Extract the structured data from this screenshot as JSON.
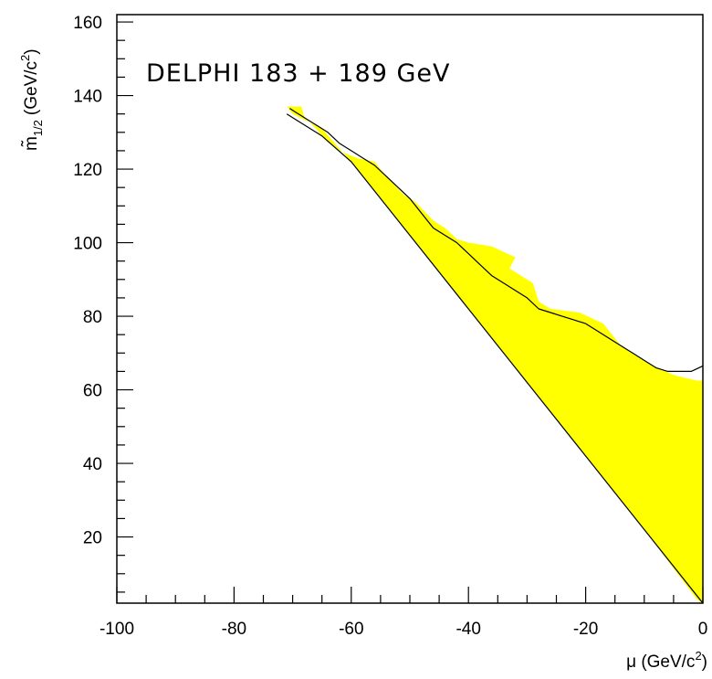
{
  "chart_data": {
    "type": "area",
    "annotation": "DELPHI 183 + 189 GeV",
    "xlabel": {
      "symbol": "μ",
      "unit_prefix": "(GeV/c",
      "unit_exp": "2",
      "unit_suffix": ")"
    },
    "ylabel": {
      "symbol": "m̃",
      "sub": "1/2",
      "unit_prefix": "(GeV/c",
      "unit_exp": "2",
      "unit_suffix": ")"
    },
    "xlim": [
      -100,
      0
    ],
    "ylim": [
      2,
      162
    ],
    "xticks": [
      "-100",
      "-80",
      "-60",
      "-40",
      "-20",
      "0"
    ],
    "yticks": [
      "20",
      "40",
      "60",
      "80",
      "100",
      "120",
      "140",
      "160"
    ],
    "colors": {
      "excluded_region": "#ffff00",
      "contour": "#000000",
      "frame": "#000000"
    },
    "series": [
      {
        "kind": "filled-region",
        "color": "#ffff00",
        "points": [
          [
            -71,
            137
          ],
          [
            -68.5,
            137
          ],
          [
            -68,
            134
          ],
          [
            -66,
            131
          ],
          [
            -64.5,
            128
          ],
          [
            -62,
            125
          ],
          [
            -59,
            123
          ],
          [
            -56,
            122
          ],
          [
            -54,
            118
          ],
          [
            -51,
            113
          ],
          [
            -49,
            111
          ],
          [
            -46,
            106
          ],
          [
            -44,
            104
          ],
          [
            -42,
            101
          ],
          [
            -40,
            100
          ],
          [
            -36,
            99
          ],
          [
            -32,
            96
          ],
          [
            -33,
            93
          ],
          [
            -29,
            89
          ],
          [
            -28,
            84
          ],
          [
            -26,
            82
          ],
          [
            -21,
            81
          ],
          [
            -17,
            78
          ],
          [
            -14,
            72
          ],
          [
            -9,
            67
          ],
          [
            -5,
            64
          ],
          [
            -1,
            62.5
          ],
          [
            0,
            62.5
          ],
          [
            0,
            2
          ],
          [
            -1,
            3
          ],
          [
            -10,
            22
          ],
          [
            -20,
            42
          ],
          [
            -30,
            62
          ],
          [
            -40,
            82
          ],
          [
            -50,
            102
          ],
          [
            -60,
            122
          ],
          [
            -65,
            131
          ],
          [
            -70,
            135
          ]
        ]
      },
      {
        "kind": "contour",
        "color": "#000000",
        "points": [
          [
            -70.5,
            136.5
          ],
          [
            -69.5,
            135.5
          ],
          [
            -68,
            134
          ],
          [
            -66,
            132
          ],
          [
            -64,
            130
          ],
          [
            -62,
            127
          ],
          [
            -60,
            125
          ],
          [
            -58,
            123
          ],
          [
            -56,
            121
          ],
          [
            -54,
            118
          ],
          [
            -52,
            115
          ],
          [
            -50,
            112
          ],
          [
            -48,
            108
          ],
          [
            -46,
            104
          ],
          [
            -44,
            102
          ],
          [
            -42,
            100
          ],
          [
            -40,
            97
          ],
          [
            -38,
            94
          ],
          [
            -36,
            91
          ],
          [
            -34,
            89
          ],
          [
            -32,
            87
          ],
          [
            -30,
            85
          ],
          [
            -28,
            82
          ],
          [
            -26,
            81
          ],
          [
            -24,
            80
          ],
          [
            -22,
            79
          ],
          [
            -20,
            78
          ],
          [
            -18,
            76
          ],
          [
            -16,
            74
          ],
          [
            -14,
            72
          ],
          [
            -12,
            70
          ],
          [
            -10,
            68
          ],
          [
            -8,
            66
          ],
          [
            -6,
            65
          ],
          [
            -4,
            65
          ],
          [
            -2,
            65
          ],
          [
            0,
            66.5
          ]
        ]
      },
      {
        "kind": "boundary",
        "color": "#000000",
        "points": [
          [
            -71,
            135
          ],
          [
            -70,
            134
          ],
          [
            -65,
            129
          ],
          [
            -60,
            122
          ],
          [
            -50,
            102
          ],
          [
            -40,
            82
          ],
          [
            -30,
            62
          ],
          [
            -20,
            42
          ],
          [
            -10,
            22
          ],
          [
            -5,
            12
          ],
          [
            0,
            2
          ]
        ]
      }
    ],
    "grid": false,
    "legend": "none"
  }
}
